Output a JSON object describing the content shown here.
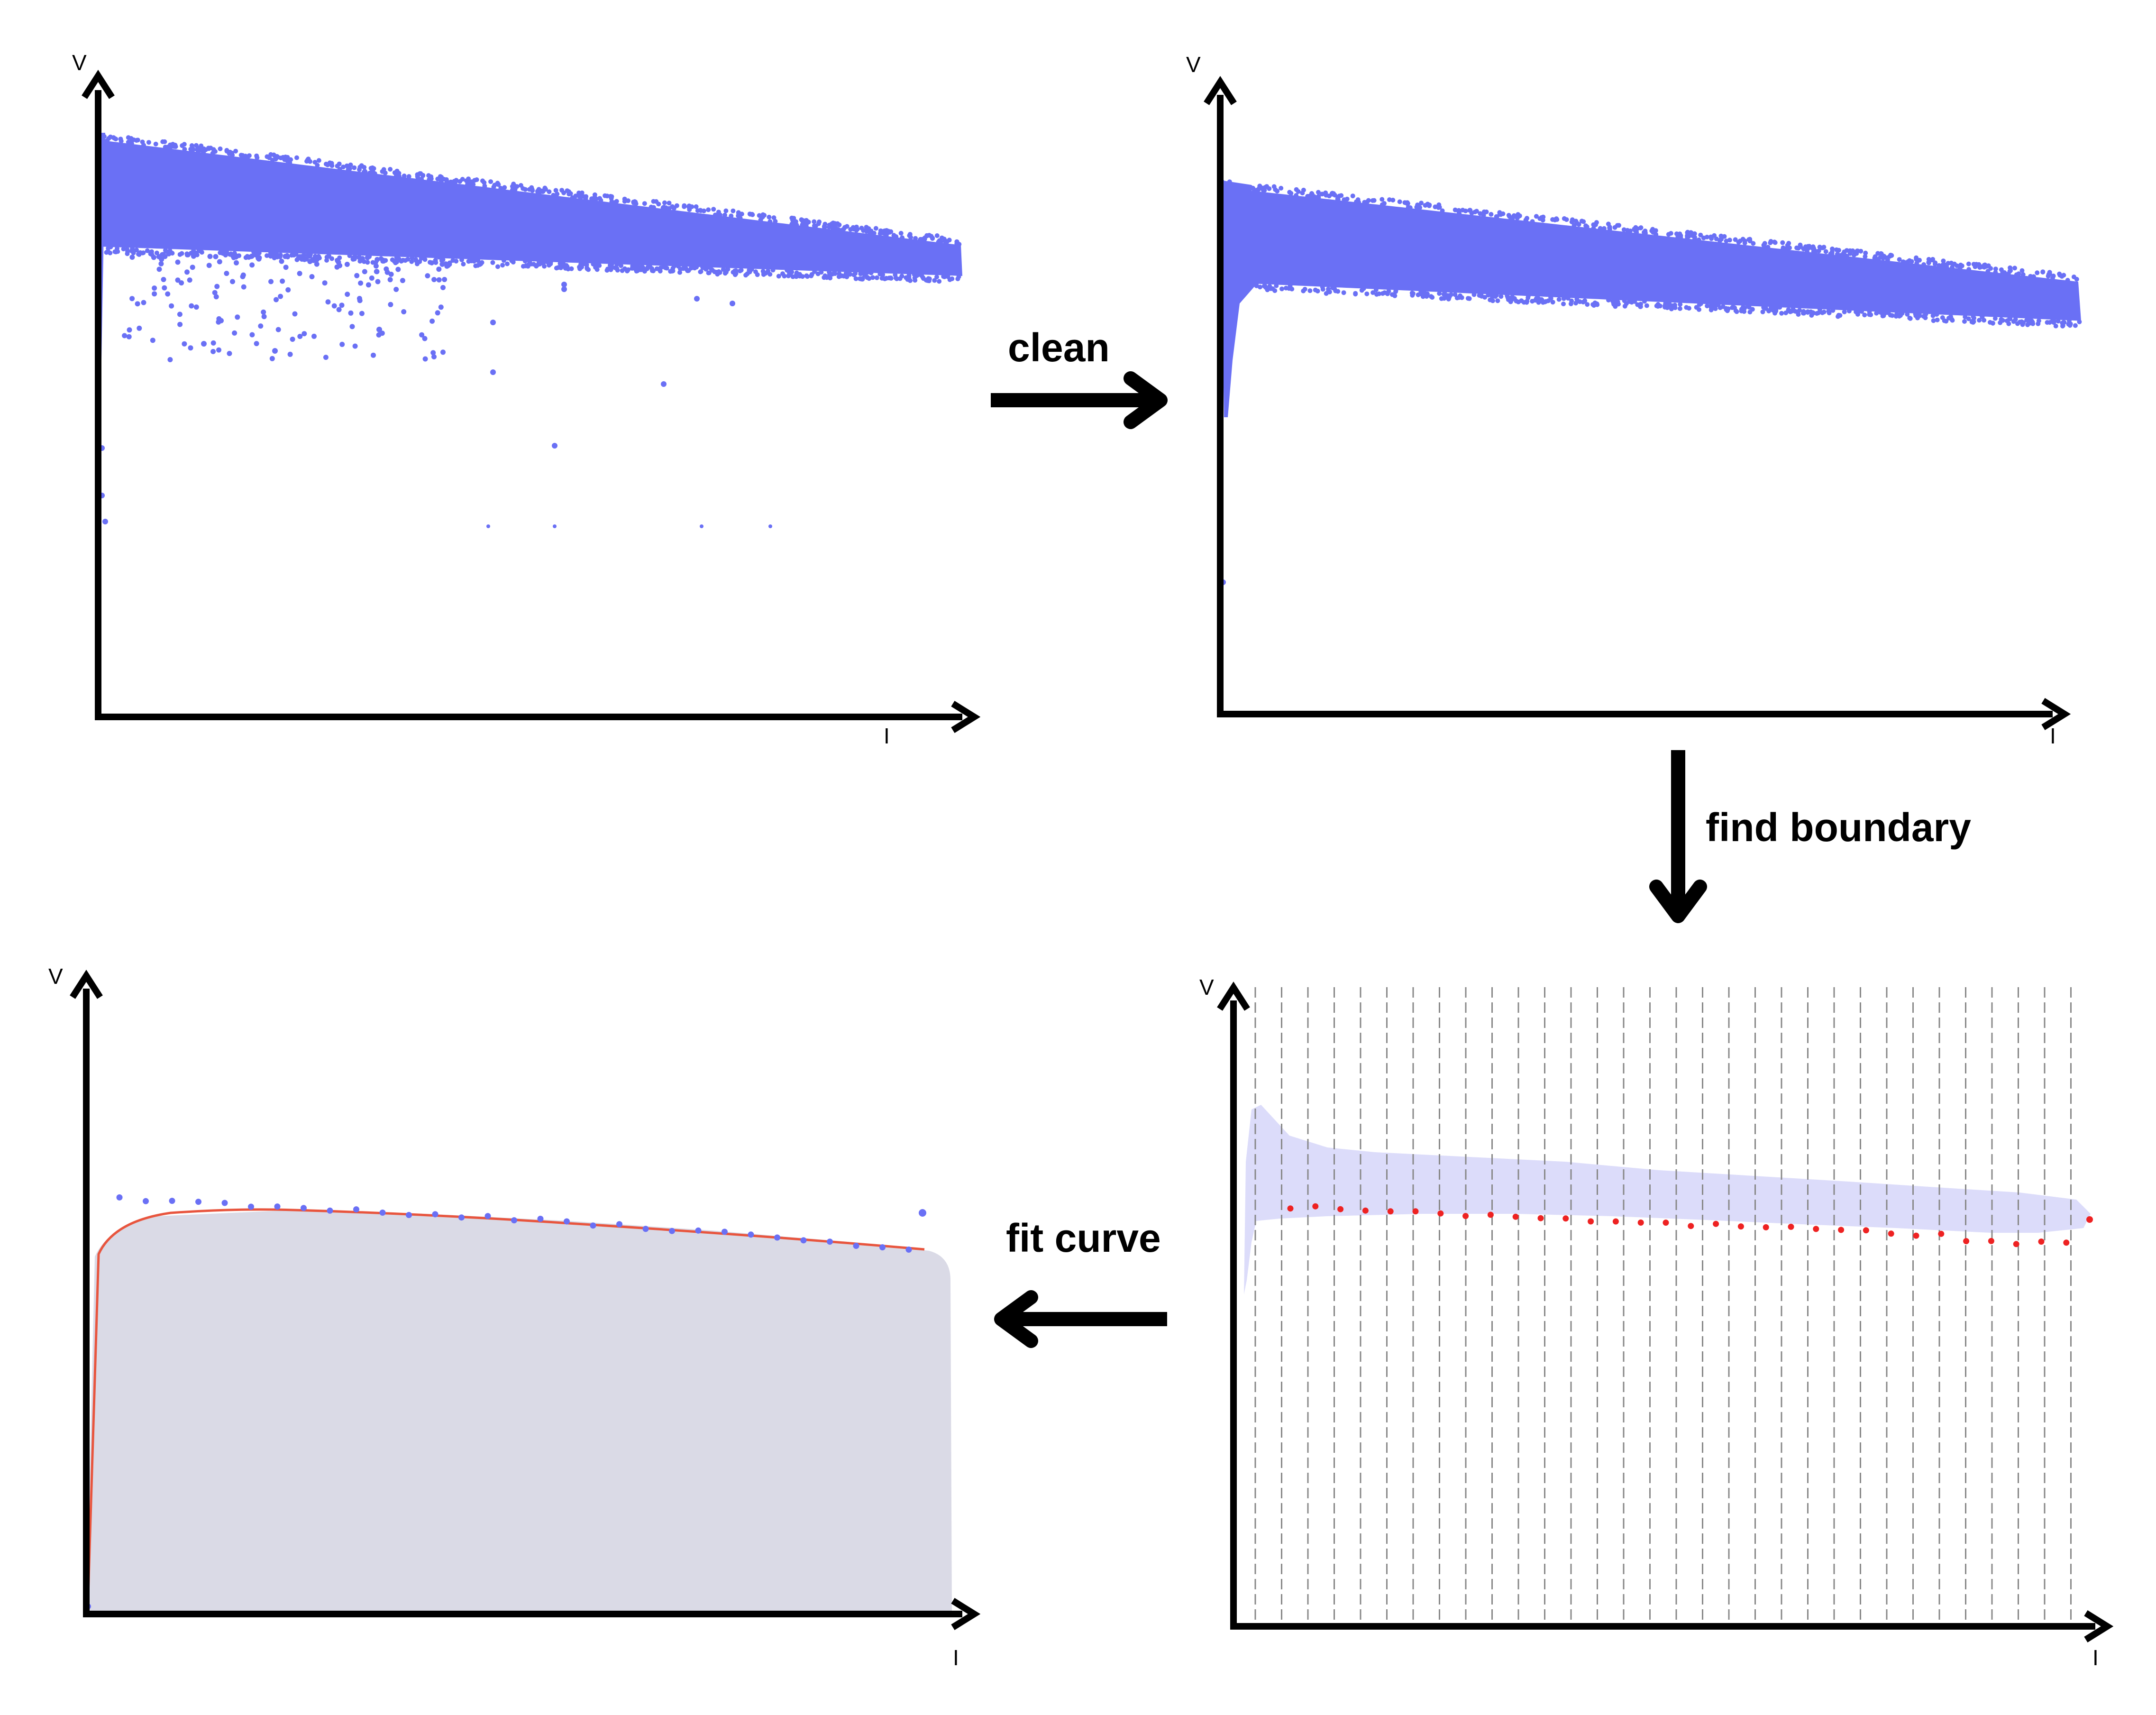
{
  "diagram": {
    "steps": {
      "clean": "clean",
      "find_boundary": "find boundary",
      "fit_curve": "fit curve"
    },
    "axes": {
      "y": "V",
      "x": "I"
    },
    "colors": {
      "points": "#6a70f5",
      "region": "#dcdcfa",
      "fit_area": "#dadae6",
      "boundary_points": "#ee2222",
      "fit_line": "#e8553e",
      "axis": "#000000",
      "grid": "#888888"
    },
    "panels": [
      {
        "id": "raw",
        "position": "top-left",
        "content": "raw scatter with outliers"
      },
      {
        "id": "cleaned",
        "position": "top-right",
        "content": "cleaned scatter"
      },
      {
        "id": "boundary",
        "position": "bottom-right",
        "content": "binned region with boundary points"
      },
      {
        "id": "fit",
        "position": "bottom-left",
        "content": "fitted curve over area"
      }
    ]
  }
}
